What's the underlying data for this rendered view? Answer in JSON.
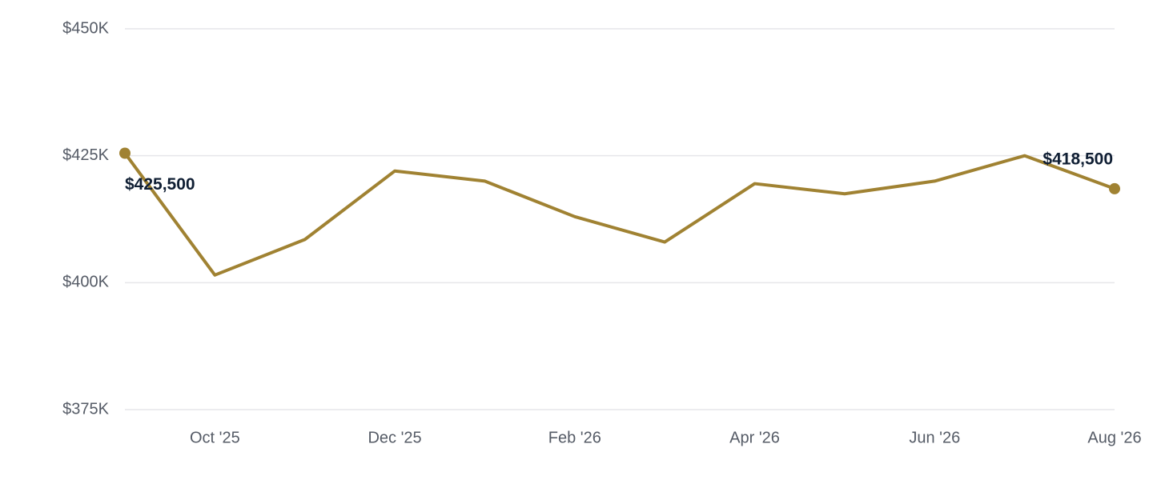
{
  "chart_data": {
    "type": "line",
    "categories": [
      null,
      "Oct '25",
      null,
      "Dec '25",
      null,
      "Feb '26",
      null,
      "Apr '26",
      null,
      "Jun '26",
      null,
      "Aug '26"
    ],
    "values": [
      425500,
      401500,
      408500,
      422000,
      420000,
      413000,
      408000,
      419500,
      417500,
      420000,
      425000,
      418500
    ],
    "value_labels": [
      "$425,500",
      null,
      null,
      null,
      null,
      null,
      null,
      null,
      null,
      null,
      null,
      "$418,500"
    ],
    "color": "#a08232",
    "ylim": [
      375000,
      450000
    ],
    "yticks": [
      {
        "value": 375000,
        "label": "$375K"
      },
      {
        "value": 400000,
        "label": "$400K"
      },
      {
        "value": 425000,
        "label": "$425K"
      },
      {
        "value": 450000,
        "label": "$450K"
      }
    ],
    "grid": true
  }
}
